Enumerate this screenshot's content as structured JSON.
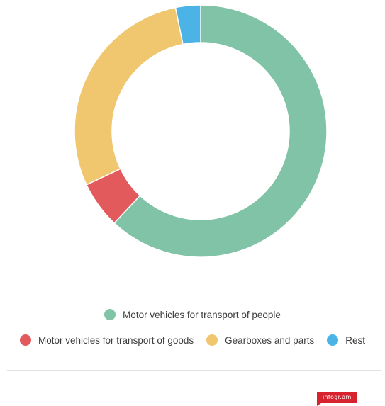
{
  "chart_data": {
    "type": "pie",
    "title": "",
    "donut": true,
    "legend_position": "bottom",
    "categories": [
      "Motor vehicles for transport of people",
      "Motor vehicles for transport of goods",
      "Gearboxes and parts",
      "Rest"
    ],
    "values": [
      62.0,
      6.0,
      28.8,
      3.2
    ],
    "colors": [
      "#80c3a6",
      "#e25a5c",
      "#f0c66e",
      "#4bb3e6"
    ]
  },
  "brand": {
    "label": "infogr.am"
  }
}
